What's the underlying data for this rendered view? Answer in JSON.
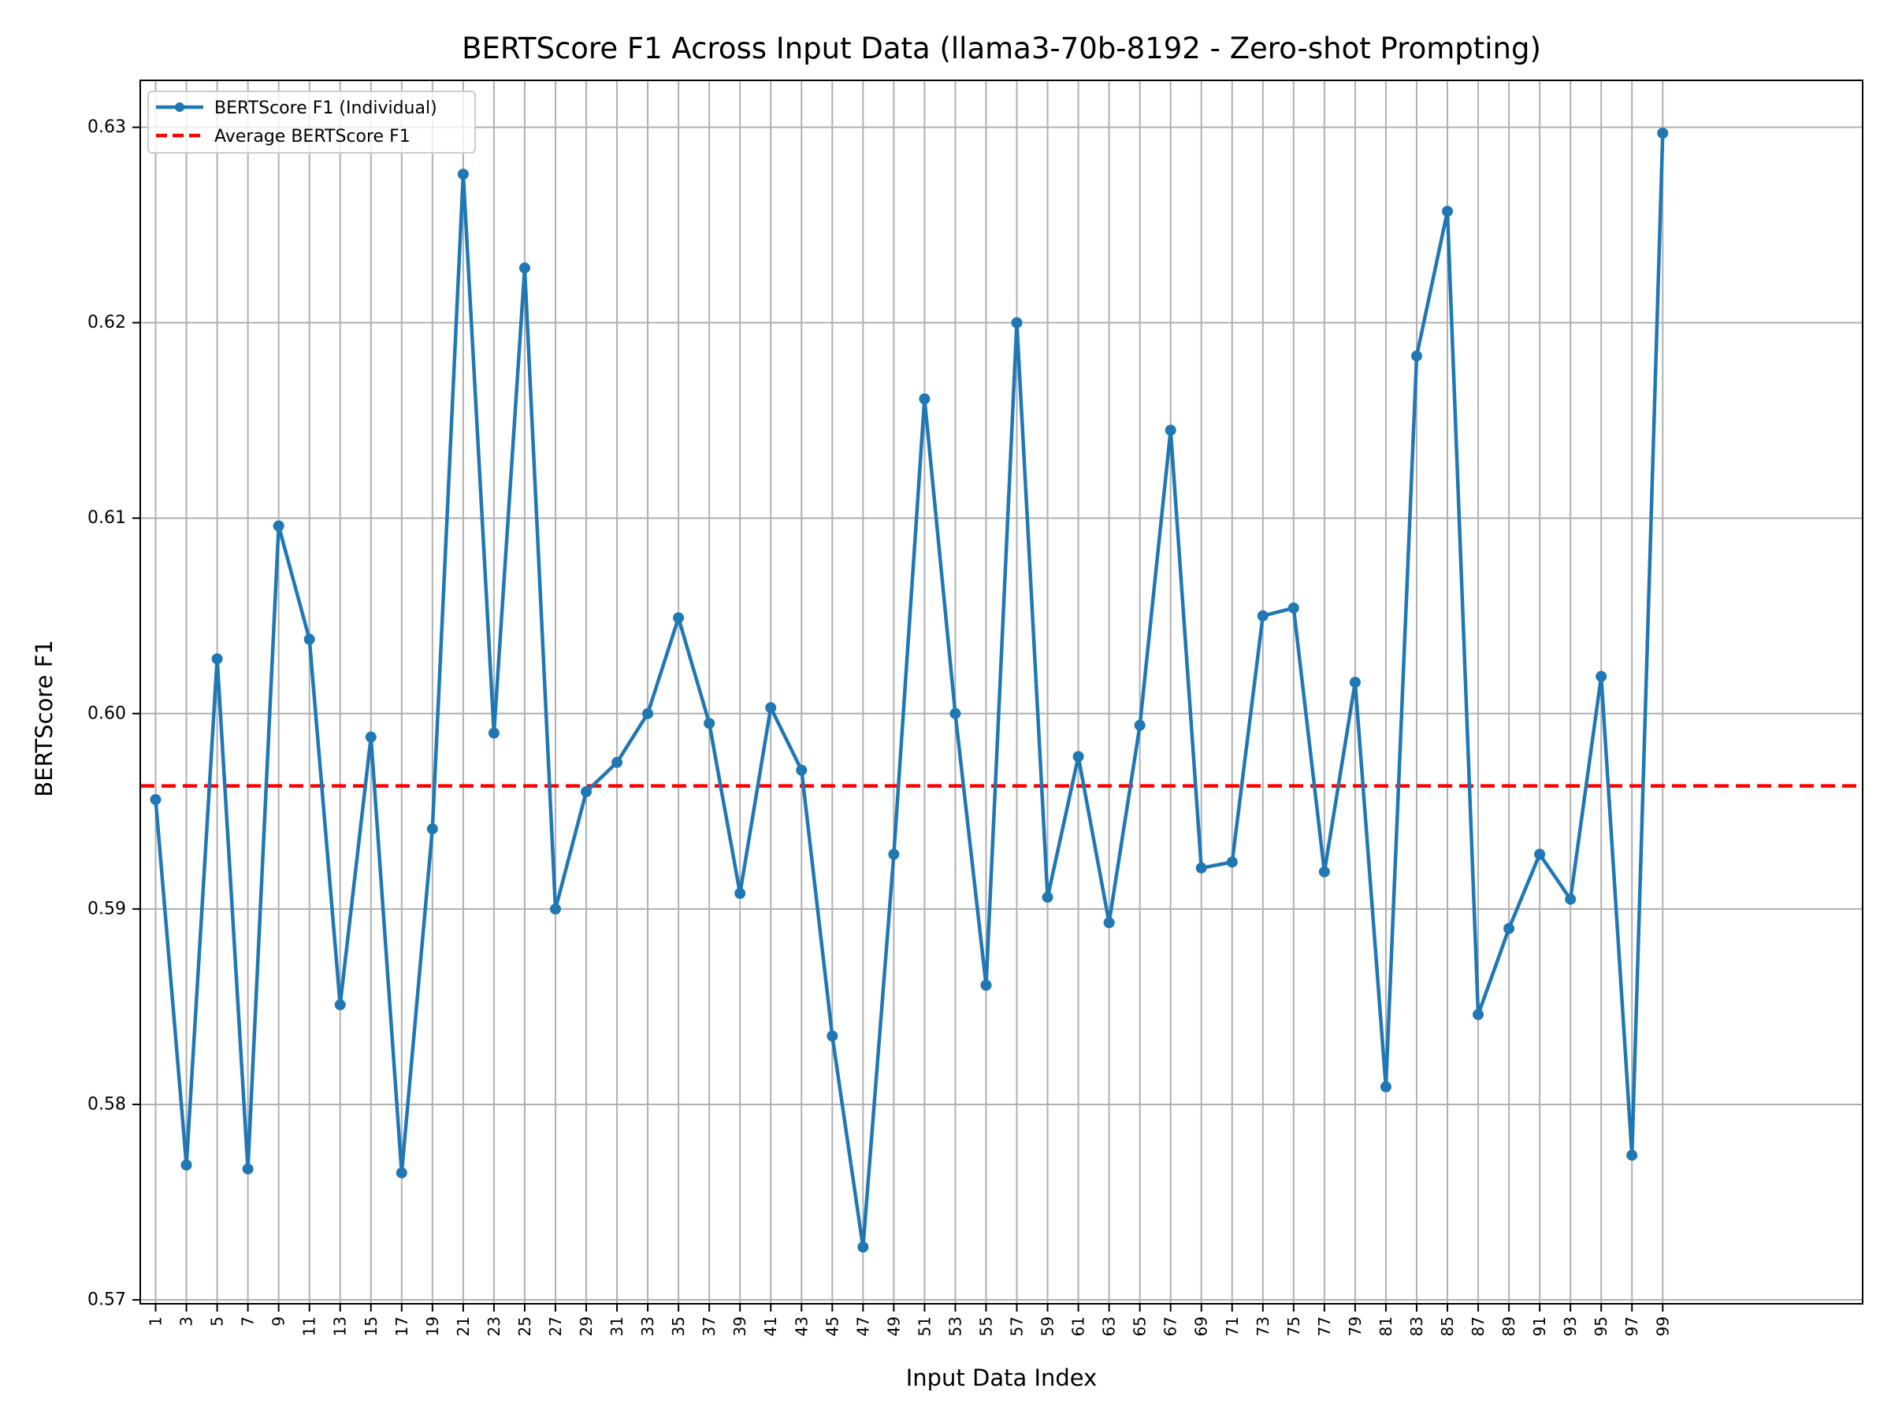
{
  "chart_data": {
    "type": "line",
    "title": "BERTScore F1 Across Input Data (llama3-70b-8192 - Zero-shot Prompting)",
    "xlabel": "Input Data Index",
    "ylabel": "BERTScore F1",
    "ylim": [
      0.5698,
      0.6324
    ],
    "xlim": [
      -0.5,
      55.5
    ],
    "y_ticks": [
      "0.57",
      "0.58",
      "0.59",
      "0.60",
      "0.61",
      "0.62",
      "0.63"
    ],
    "y_tick_values": [
      0.57,
      0.58,
      0.59,
      0.6,
      0.61,
      0.62,
      0.63
    ],
    "categories": [
      "1",
      "3",
      "5",
      "7",
      "9",
      "11",
      "13",
      "15",
      "17",
      "19",
      "21",
      "23",
      "25",
      "27",
      "29",
      "31",
      "33",
      "35",
      "37",
      "39",
      "41",
      "43",
      "45",
      "47",
      "49",
      "51",
      "53",
      "55",
      "57",
      "59",
      "61",
      "63",
      "65",
      "67",
      "69",
      "71",
      "73",
      "75",
      "77",
      "79",
      "81",
      "83",
      "85",
      "87",
      "89",
      "91",
      "93",
      "95",
      "97",
      "99"
    ],
    "grid": true,
    "legend_position": "upper-left",
    "series": [
      {
        "name": "BERTScore F1 (Individual)",
        "color": "#1f77b4",
        "style": "solid-with-markers",
        "values": [
          0.5956,
          0.5769,
          0.6028,
          0.5767,
          0.6096,
          0.6038,
          0.5851,
          0.5988,
          0.5765,
          0.5941,
          0.6276,
          0.599,
          0.6228,
          0.59,
          0.596,
          0.5975,
          0.6,
          0.6049,
          0.5995,
          0.5908,
          0.6003,
          0.5971,
          0.5835,
          0.5727,
          0.5928,
          0.6161,
          0.6,
          0.5861,
          0.62,
          0.5906,
          0.5978,
          0.5893,
          0.5994,
          0.6145,
          0.5921,
          0.5924,
          0.605,
          0.6054,
          0.5919,
          0.6016,
          0.5809,
          0.6183,
          0.6257,
          0.5846,
          0.589,
          0.5928,
          0.5905,
          0.6019,
          0.5774,
          0.6297
        ]
      },
      {
        "name": "Average BERTScore F1",
        "color": "#ff0000",
        "style": "dashed",
        "value": 0.5963
      }
    ]
  }
}
